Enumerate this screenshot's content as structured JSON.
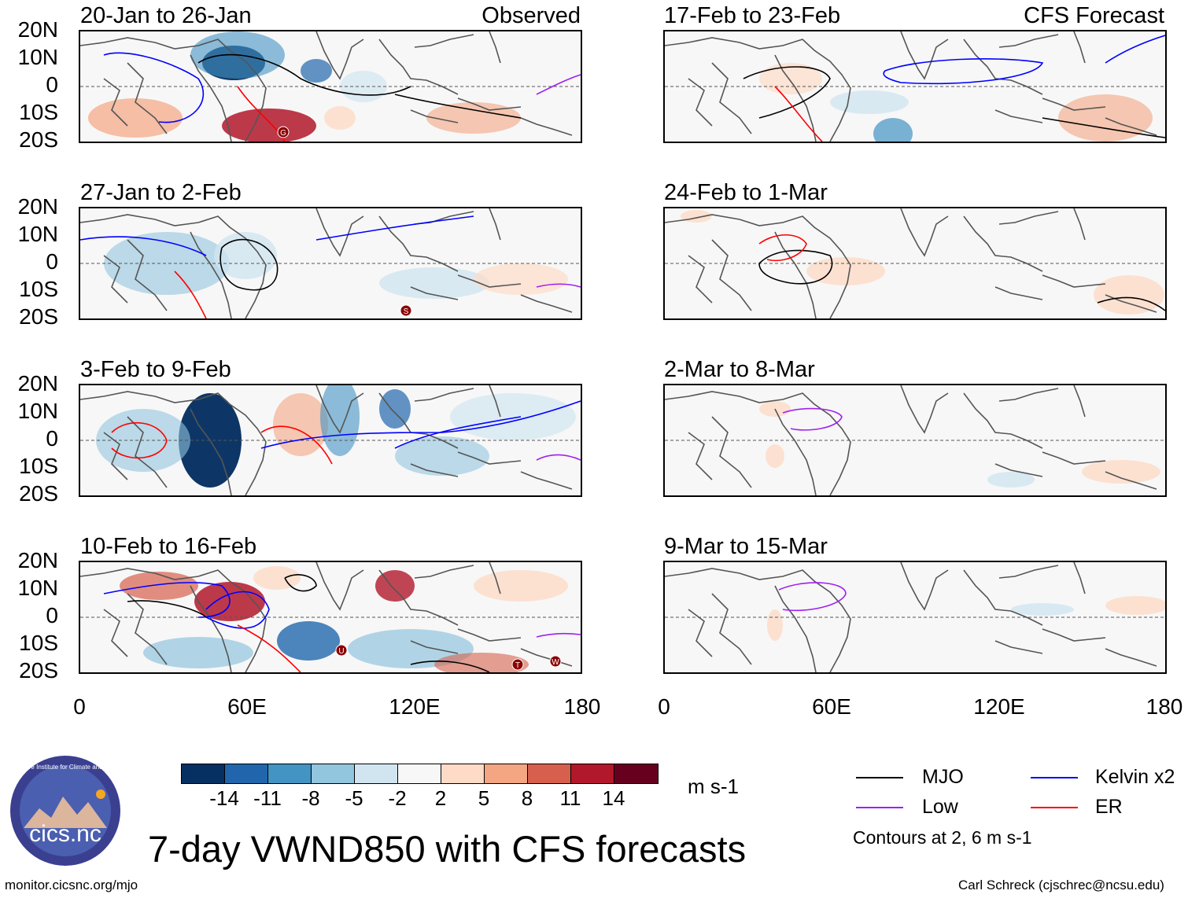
{
  "main_title": "7-day VWND850 with CFS forecasts",
  "units": "m s-1",
  "observed_label": "Observed",
  "forecast_label": "CFS Forecast",
  "y_axis_labels": [
    "20N",
    "10N",
    "0",
    "10S",
    "20S"
  ],
  "x_axis_labels": [
    "0",
    "60E",
    "120E",
    "180"
  ],
  "colorbar": {
    "colors": [
      "#053061",
      "#2166ac",
      "#4393c3",
      "#92c5de",
      "#d1e5f0",
      "#f7f7f7",
      "#fddbc7",
      "#f4a582",
      "#d6604d",
      "#b2182b",
      "#67001f"
    ],
    "labels": [
      "-14",
      "-11",
      "-8",
      "-5",
      "-2",
      "2",
      "5",
      "8",
      "11",
      "14"
    ]
  },
  "legend": {
    "items": [
      {
        "label": "MJO",
        "color": "#000000"
      },
      {
        "label": "Kelvin x2",
        "color": "#0000ff"
      },
      {
        "label": "Low",
        "color": "#a020f0"
      },
      {
        "label": "ER",
        "color": "#ff0000"
      }
    ],
    "note": "Contours at 2, 6 m s-1"
  },
  "panels_left": [
    {
      "title": "20-Jan to 26-Jan",
      "tag": "Observed"
    },
    {
      "title": "27-Jan to 2-Feb",
      "tag": ""
    },
    {
      "title": "3-Feb to 9-Feb",
      "tag": ""
    },
    {
      "title": "10-Feb to 16-Feb",
      "tag": ""
    }
  ],
  "panels_right": [
    {
      "title": "17-Feb to 23-Feb",
      "tag": "CFS Forecast"
    },
    {
      "title": "24-Feb to 1-Mar",
      "tag": ""
    },
    {
      "title": "2-Mar to 8-Mar",
      "tag": ""
    },
    {
      "title": "9-Mar to 15-Mar",
      "tag": ""
    }
  ],
  "storm_markers": [
    {
      "panel": "left-0",
      "letter": "G"
    },
    {
      "panel": "left-1",
      "letter": "S"
    },
    {
      "panel": "left-3",
      "letter": "U"
    },
    {
      "panel": "left-3",
      "letter": "T"
    },
    {
      "panel": "left-3",
      "letter": "W"
    }
  ],
  "logo_text": "cics.nc",
  "logo_ring_text": "Cooperative Institute for Climate and Satellites",
  "footer_left": "monitor.cicsnc.org/mjo",
  "footer_right": "Carl Schreck (cjschrec@ncsu.edu)"
}
